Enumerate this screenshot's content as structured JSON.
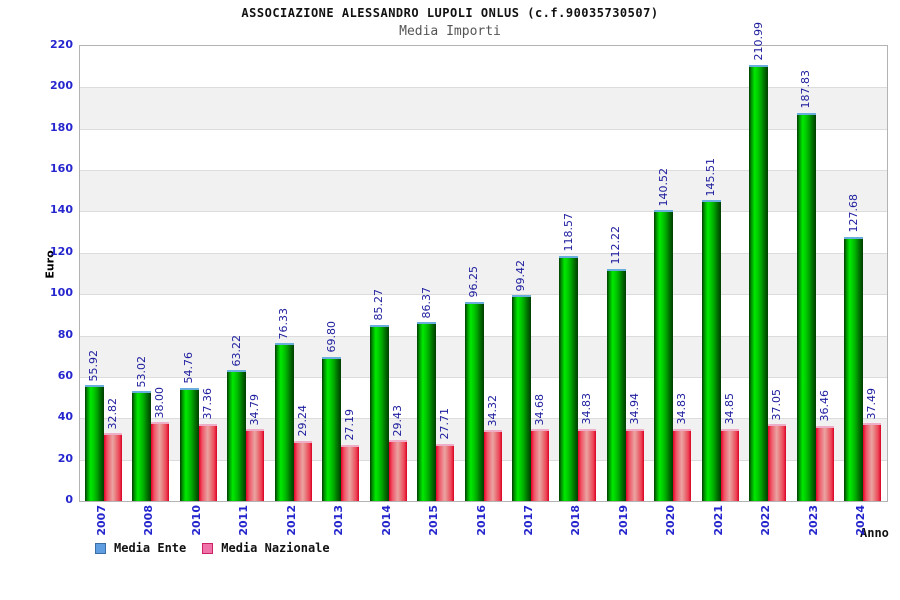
{
  "header": {
    "title": "ASSOCIAZIONE ALESSANDRO LUPOLI ONLUS (c.f.90035730507)",
    "subtitle": "Media Importi"
  },
  "chart_data": {
    "type": "bar",
    "title": "ASSOCIAZIONE ALESSANDRO LUPOLI ONLUS (c.f.90035730507)",
    "subtitle": "Media Importi",
    "xlabel": "Anno",
    "ylabel": "Euro",
    "ylim": [
      0,
      220
    ],
    "ytick_step": 20,
    "grid": "horizontal-bands",
    "legend_position": "bottom",
    "categories": [
      "2007",
      "2008",
      "2010",
      "2011",
      "2012",
      "2013",
      "2014",
      "2015",
      "2016",
      "2017",
      "2018",
      "2019",
      "2020",
      "2021",
      "2022",
      "2023",
      "2024"
    ],
    "series": [
      {
        "name": "Media Ente",
        "bar_color": "#00cc00",
        "legend_fill": "#5f9ee0",
        "legend_border": "#3a6ea5",
        "values": [
          55.92,
          53.02,
          54.76,
          63.22,
          76.33,
          69.8,
          85.27,
          86.37,
          96.25,
          99.42,
          118.57,
          112.22,
          140.52,
          145.51,
          210.99,
          187.83,
          127.68
        ],
        "labels": [
          "55.92",
          "53.02",
          "54.76",
          "63.22",
          "76.33",
          "69.80",
          "85.27",
          "86.37",
          "96.25",
          "99.42",
          "118.57",
          "112.22",
          "140.52",
          "145.51",
          "210.99",
          "187.83",
          "127.68"
        ]
      },
      {
        "name": "Media Nazionale",
        "bar_color": "#ee4455",
        "legend_fill": "#ef72a8",
        "legend_border": "#cc2266",
        "values": [
          32.82,
          38.0,
          37.36,
          34.79,
          29.24,
          27.19,
          29.43,
          27.71,
          34.32,
          34.68,
          34.83,
          34.94,
          34.83,
          34.85,
          37.05,
          36.46,
          37.49
        ],
        "labels": [
          "32.82",
          "38.00",
          "37.36",
          "34.79",
          "29.24",
          "27.19",
          "29.43",
          "27.71",
          "34.32",
          "34.68",
          "34.83",
          "34.94",
          "34.83",
          "34.85",
          "37.05",
          "36.46",
          "37.49"
        ]
      }
    ],
    "colors": {
      "tick_label": "#2626cf",
      "value_label": "#1c1c9e",
      "band_gray": "#f1f1f1",
      "subtitle_gray": "#555555"
    }
  }
}
